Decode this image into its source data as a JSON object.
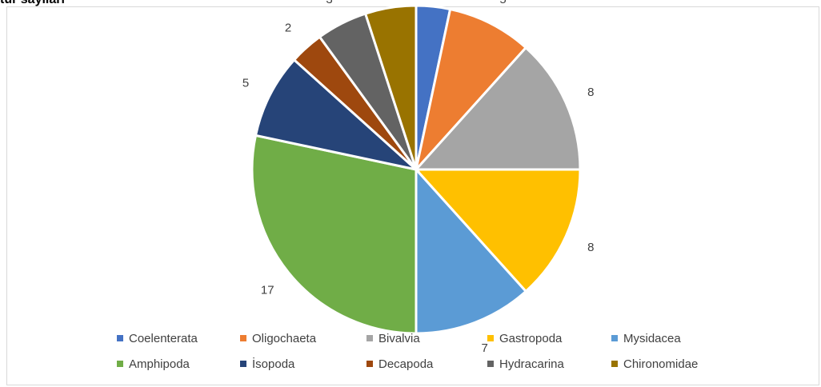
{
  "header_fragment": "tür sayıları",
  "chart_data": {
    "type": "pie",
    "title": "",
    "legend_position": "bottom",
    "slices": [
      {
        "name": "Coelenterata",
        "value": 2,
        "color": "#4472C4"
      },
      {
        "name": "Oligochaeta",
        "value": 5,
        "color": "#ED7D31"
      },
      {
        "name": "Bivalvia",
        "value": 8,
        "color": "#A5A5A5"
      },
      {
        "name": "Gastropoda",
        "value": 8,
        "color": "#FFC000"
      },
      {
        "name": "Mysidacea",
        "value": 7,
        "color": "#5B9BD5"
      },
      {
        "name": "Amphipoda",
        "value": 17,
        "color": "#70AD47"
      },
      {
        "name": "İsopoda",
        "value": 5,
        "color": "#264478"
      },
      {
        "name": "Decapoda",
        "value": 2,
        "color": "#9E480E"
      },
      {
        "name": "Hydracarina",
        "value": 3,
        "color": "#636363"
      },
      {
        "name": "Chironomidae",
        "value": 3,
        "color": "#997300"
      }
    ]
  }
}
